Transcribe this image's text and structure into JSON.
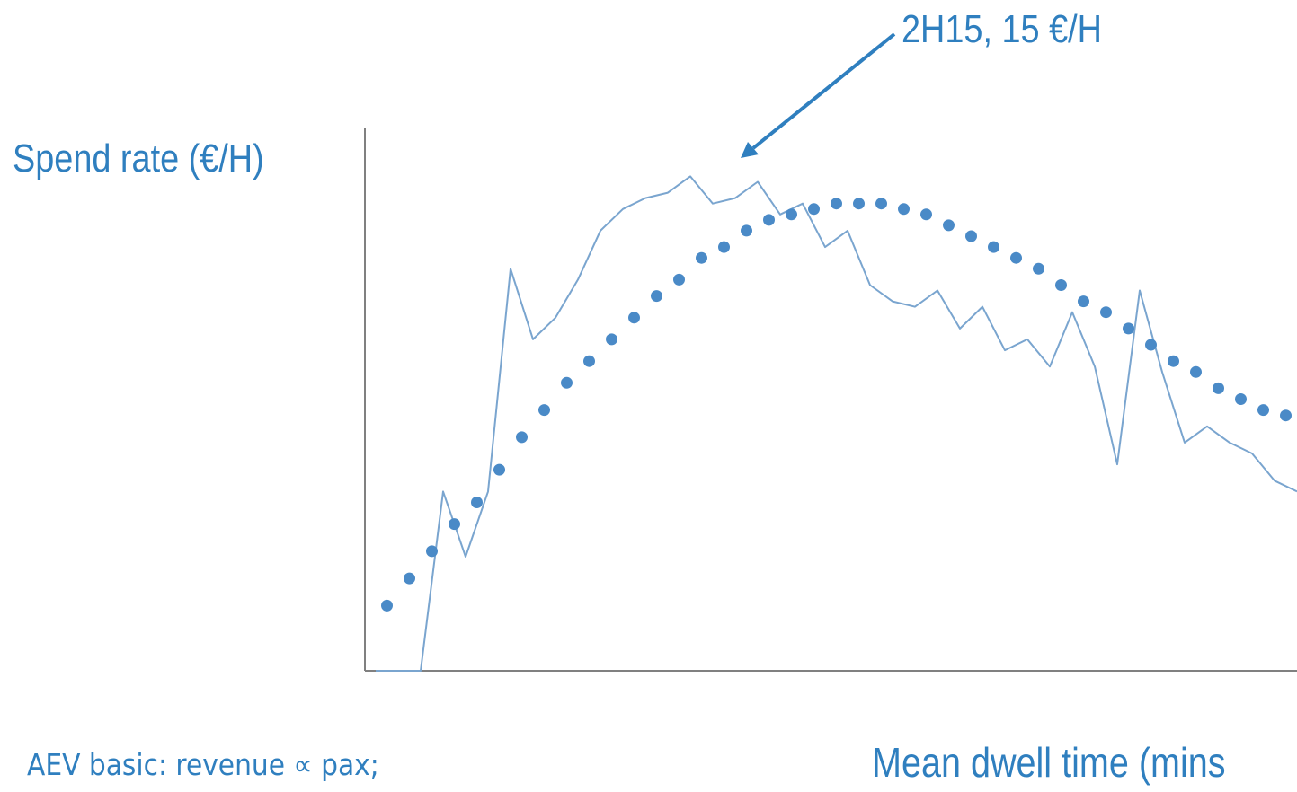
{
  "chart_data": {
    "type": "line",
    "title": "",
    "ylabel": "Spend rate (€/H)",
    "xlabel": "Mean dwell time (mins",
    "annotation": "2H15, 15 €/H",
    "grid": false,
    "colors": {
      "actual": "#7aa5cf",
      "trend": "#4a8ac7",
      "text": "#2f7fbf",
      "axis": "#808080",
      "arrow": "#2f7fbf"
    },
    "series": [
      {
        "style": "thin-line",
        "x": [
          0,
          2,
          4,
          6,
          8,
          10,
          12,
          14,
          16,
          18,
          20,
          22,
          24,
          26,
          28,
          30,
          32,
          34,
          36,
          38,
          40,
          42,
          44,
          46,
          48,
          50,
          52,
          54,
          56,
          58,
          60,
          62,
          64,
          66,
          68,
          70,
          72,
          74,
          76,
          78,
          80,
          82
        ],
        "values": [
          0,
          0,
          0,
          33,
          21,
          33,
          74,
          61,
          65,
          72,
          81,
          85,
          87,
          88,
          91,
          86,
          87,
          90,
          84,
          86,
          78,
          81,
          71,
          68,
          67,
          70,
          63,
          67,
          59,
          61,
          56,
          66,
          56,
          38,
          70,
          55,
          42,
          45,
          42,
          40,
          35,
          33
        ]
      },
      {
        "style": "dotted-trend",
        "x": [
          1,
          3,
          5,
          7,
          9,
          11,
          13,
          15,
          17,
          19,
          21,
          23,
          25,
          27,
          29,
          31,
          33,
          35,
          37,
          39,
          41,
          43,
          45,
          47,
          49,
          51,
          53,
          55,
          57,
          59,
          61,
          63,
          65,
          67,
          69,
          71,
          73,
          75,
          77,
          79,
          81
        ],
        "values": [
          12,
          17,
          22,
          27,
          31,
          37,
          43,
          48,
          53,
          57,
          61,
          65,
          69,
          72,
          76,
          78,
          81,
          83,
          84,
          85,
          86,
          86,
          86,
          85,
          84,
          82,
          80,
          78,
          76,
          74,
          71,
          68,
          66,
          63,
          60,
          57,
          55,
          52,
          50,
          48,
          47
        ]
      }
    ],
    "xlim": [
      0,
      82
    ],
    "ylim": [
      0,
      100
    ]
  },
  "footnote": "AEV basic: revenue ∝ pax;"
}
